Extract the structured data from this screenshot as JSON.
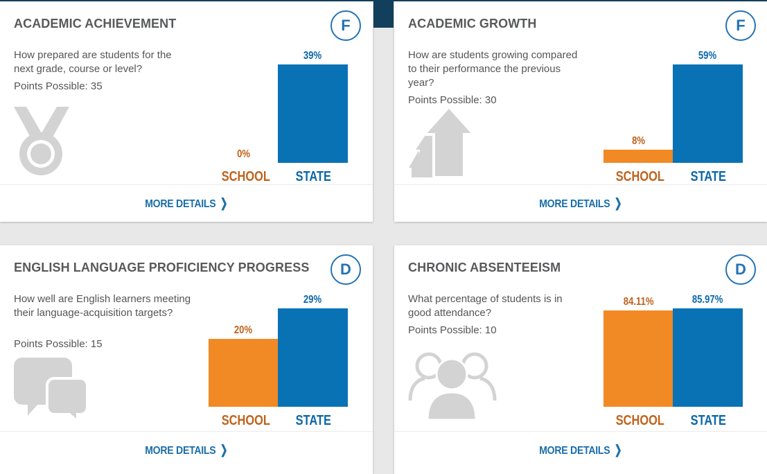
{
  "cards": [
    {
      "title": "ACADEMIC ACHIEVEMENT",
      "grade": "F",
      "question": "How prepared are students for the next grade, course or level?",
      "points": "Points Possible: 35",
      "school_value": "0%",
      "state_value": "39%",
      "school_label": "SCHOOL",
      "state_label": "STATE",
      "more": "MORE DETAILS",
      "icon": "medal-icon"
    },
    {
      "title": "ACADEMIC GROWTH",
      "grade": "F",
      "question": "How are students growing compared to their performance the previous year?",
      "points": "Points Possible: 30",
      "school_value": "8%",
      "state_value": "59%",
      "school_label": "SCHOOL",
      "state_label": "STATE",
      "more": "MORE DETAILS",
      "icon": "growth-arrows-icon"
    },
    {
      "title": "ENGLISH LANGUAGE PROFICIENCY PROGRESS",
      "grade": "D",
      "question": "How well are English learners meeting their language-acquisition targets?",
      "points": "Points Possible: 15",
      "school_value": "20%",
      "state_value": "29%",
      "school_label": "SCHOOL",
      "state_label": "STATE",
      "more": "MORE DETAILS",
      "icon": "speech-bubbles-icon"
    },
    {
      "title": "CHRONIC ABSENTEEISM",
      "grade": "D",
      "question": "What percentage of students is in good attendance?",
      "points": "Points Possible: 10",
      "school_value": "84.11%",
      "state_value": "85.97%",
      "school_label": "SCHOOL",
      "state_label": "STATE",
      "more": "MORE DETAILS",
      "icon": "people-group-icon"
    }
  ],
  "colors": {
    "school": "#f18a25",
    "state": "#0972b5",
    "accent": "#2372b4"
  }
}
